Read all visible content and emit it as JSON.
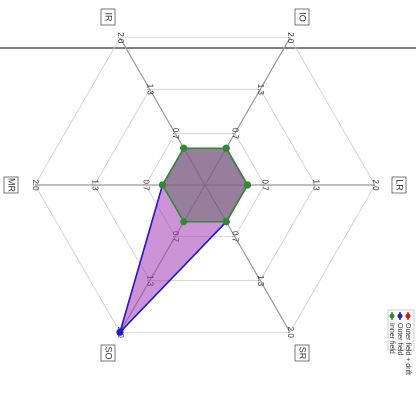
{
  "chart_data": {
    "type": "radar",
    "axes": [
      "IR",
      "IO",
      "LR",
      "SR",
      "SO",
      "MR"
    ],
    "rlim": [
      0,
      2
    ],
    "rticks": [
      0.7,
      1.3,
      {
        "value": 2,
        "label": "2.0"
      }
    ],
    "series": [
      {
        "name": "Outer field + drift",
        "color": "#e01010",
        "values": [
          0.5,
          0.5,
          0.5,
          0.5,
          2,
          0.5
        ]
      },
      {
        "name": "Outer field",
        "color": "#1a1adb",
        "values": [
          0.5,
          0.5,
          0.5,
          0.5,
          2,
          0.5
        ]
      },
      {
        "name": "Inner field",
        "color": "#2e8b2e",
        "values": [
          0.5,
          0.5,
          0.5,
          0.5,
          0.5,
          0.5
        ]
      }
    ]
  }
}
